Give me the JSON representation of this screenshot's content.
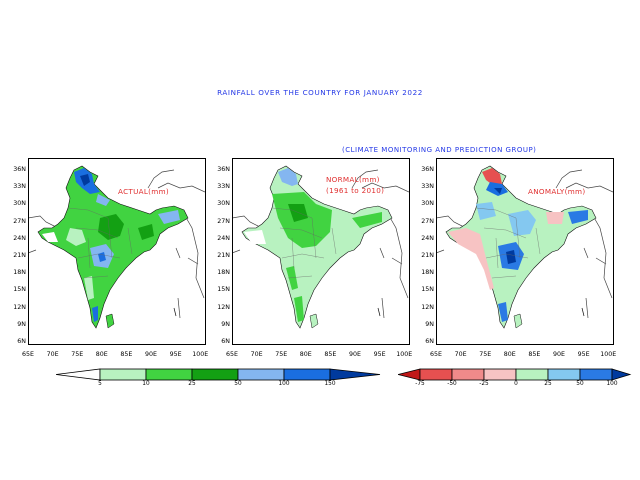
{
  "title": "RAINFALL OVER THE COUNTRY FOR JANUARY 2022",
  "subtitle": "(CLIMATE MONITORING AND PREDICTION GROUP)",
  "panels": [
    {
      "id": "actual",
      "label_line1": "ACTUAL(mm)",
      "label_line2": ""
    },
    {
      "id": "normal",
      "label_line1": "NORMAL(mm)",
      "label_line2": "(1961 to 2010)"
    },
    {
      "id": "anomaly",
      "label_line1": "ANOMALY(mm)",
      "label_line2": ""
    }
  ],
  "latitude_ticks": [
    "36N",
    "33N",
    "30N",
    "27N",
    "24N",
    "21N",
    "18N",
    "15N",
    "12N",
    "9N",
    "6N"
  ],
  "longitude_ticks": [
    "65E",
    "70E",
    "75E",
    "80E",
    "85E",
    "90E",
    "95E",
    "100E"
  ],
  "legend_actual": {
    "labels": [
      "5",
      "10",
      "25",
      "50",
      "100",
      "150"
    ],
    "colors": [
      "#ffffff",
      "#b8f2c0",
      "#41d341",
      "#13a013",
      "#84b6f0",
      "#1a6ee0",
      "#003a9e"
    ]
  },
  "legend_anomaly": {
    "labels": [
      "-75",
      "-50",
      "-25",
      "0",
      "25",
      "50",
      "100"
    ],
    "colors": [
      "#c01818",
      "#e65050",
      "#f08a8a",
      "#f7c3c3",
      "#b8f2c0",
      "#84c8f0",
      "#2a7ae4",
      "#003a9e"
    ]
  },
  "colors": {
    "title_blue": "#2438e6",
    "label_red": "#e03030"
  }
}
